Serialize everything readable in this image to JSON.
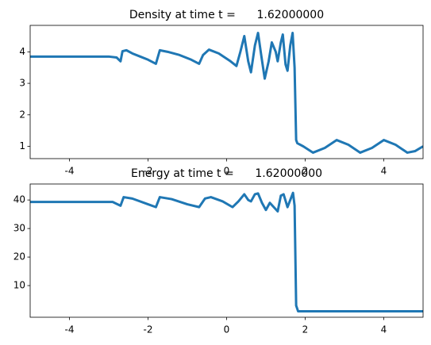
{
  "chart_data": [
    {
      "type": "line",
      "title": "Density at time t =      1.62000000",
      "color": "#1f77b4",
      "x": [
        -5,
        -3,
        -2.8,
        -2.7,
        -2.65,
        -2.55,
        -2.4,
        -2.2,
        -2.0,
        -1.8,
        -1.7,
        -1.5,
        -1.2,
        -0.9,
        -0.7,
        -0.6,
        -0.45,
        -0.2,
        0.1,
        0.25,
        0.35,
        0.45,
        0.55,
        0.62,
        0.72,
        0.8,
        0.88,
        0.97,
        1.07,
        1.15,
        1.25,
        1.3,
        1.38,
        1.43,
        1.5,
        1.55,
        1.62,
        1.68,
        1.73,
        1.77,
        1.8,
        1.95,
        2.2,
        2.5,
        2.8,
        3.1,
        3.4,
        3.7,
        4.0,
        4.3,
        4.6,
        4.8,
        5
      ],
      "values": [
        3.85,
        3.85,
        3.82,
        3.7,
        4.02,
        4.05,
        3.95,
        3.85,
        3.75,
        3.62,
        4.05,
        4.0,
        3.9,
        3.75,
        3.62,
        3.9,
        4.07,
        3.95,
        3.7,
        3.55,
        4.0,
        4.5,
        3.7,
        3.35,
        4.2,
        4.6,
        3.9,
        3.15,
        3.7,
        4.3,
        4.0,
        3.7,
        4.3,
        4.55,
        3.6,
        3.4,
        4.2,
        4.6,
        3.5,
        1.2,
        1.1,
        1.0,
        0.8,
        0.95,
        1.2,
        1.05,
        0.8,
        0.95,
        1.2,
        1.05,
        0.8,
        0.85,
        1.0
      ],
      "xlim": [
        -5,
        5
      ],
      "xticks": [
        -4,
        -2,
        0,
        2,
        4
      ],
      "ylim": [
        0.61,
        4.84
      ],
      "yticks": [
        1,
        2,
        3,
        4
      ]
    },
    {
      "type": "line",
      "title": "Energy at time t =      1.62000000",
      "color": "#1f77b4",
      "x": [
        -5,
        -2.9,
        -2.7,
        -2.62,
        -2.4,
        -2.0,
        -1.8,
        -1.7,
        -1.4,
        -1.0,
        -0.7,
        -0.55,
        -0.4,
        -0.1,
        0.15,
        0.3,
        0.45,
        0.55,
        0.62,
        0.72,
        0.8,
        0.9,
        1.0,
        1.1,
        1.2,
        1.3,
        1.38,
        1.45,
        1.55,
        1.62,
        1.69,
        1.73,
        1.77,
        1.82,
        5
      ],
      "values": [
        39.3,
        39.3,
        38,
        41,
        40.5,
        38.5,
        37.5,
        41,
        40.3,
        38.5,
        37.5,
        40.5,
        41,
        39.5,
        37.5,
        39.5,
        42,
        40,
        39.5,
        42,
        42.3,
        39,
        36.5,
        39,
        37.5,
        36,
        41.5,
        42,
        37.5,
        40,
        42.5,
        38,
        3,
        1.0,
        1.0
      ],
      "xlim": [
        -5,
        5
      ],
      "xticks": [
        -4,
        -2,
        0,
        2,
        4
      ],
      "ylim": [
        -1.1,
        45.6
      ],
      "yticks": [
        10,
        20,
        30,
        40
      ]
    }
  ]
}
